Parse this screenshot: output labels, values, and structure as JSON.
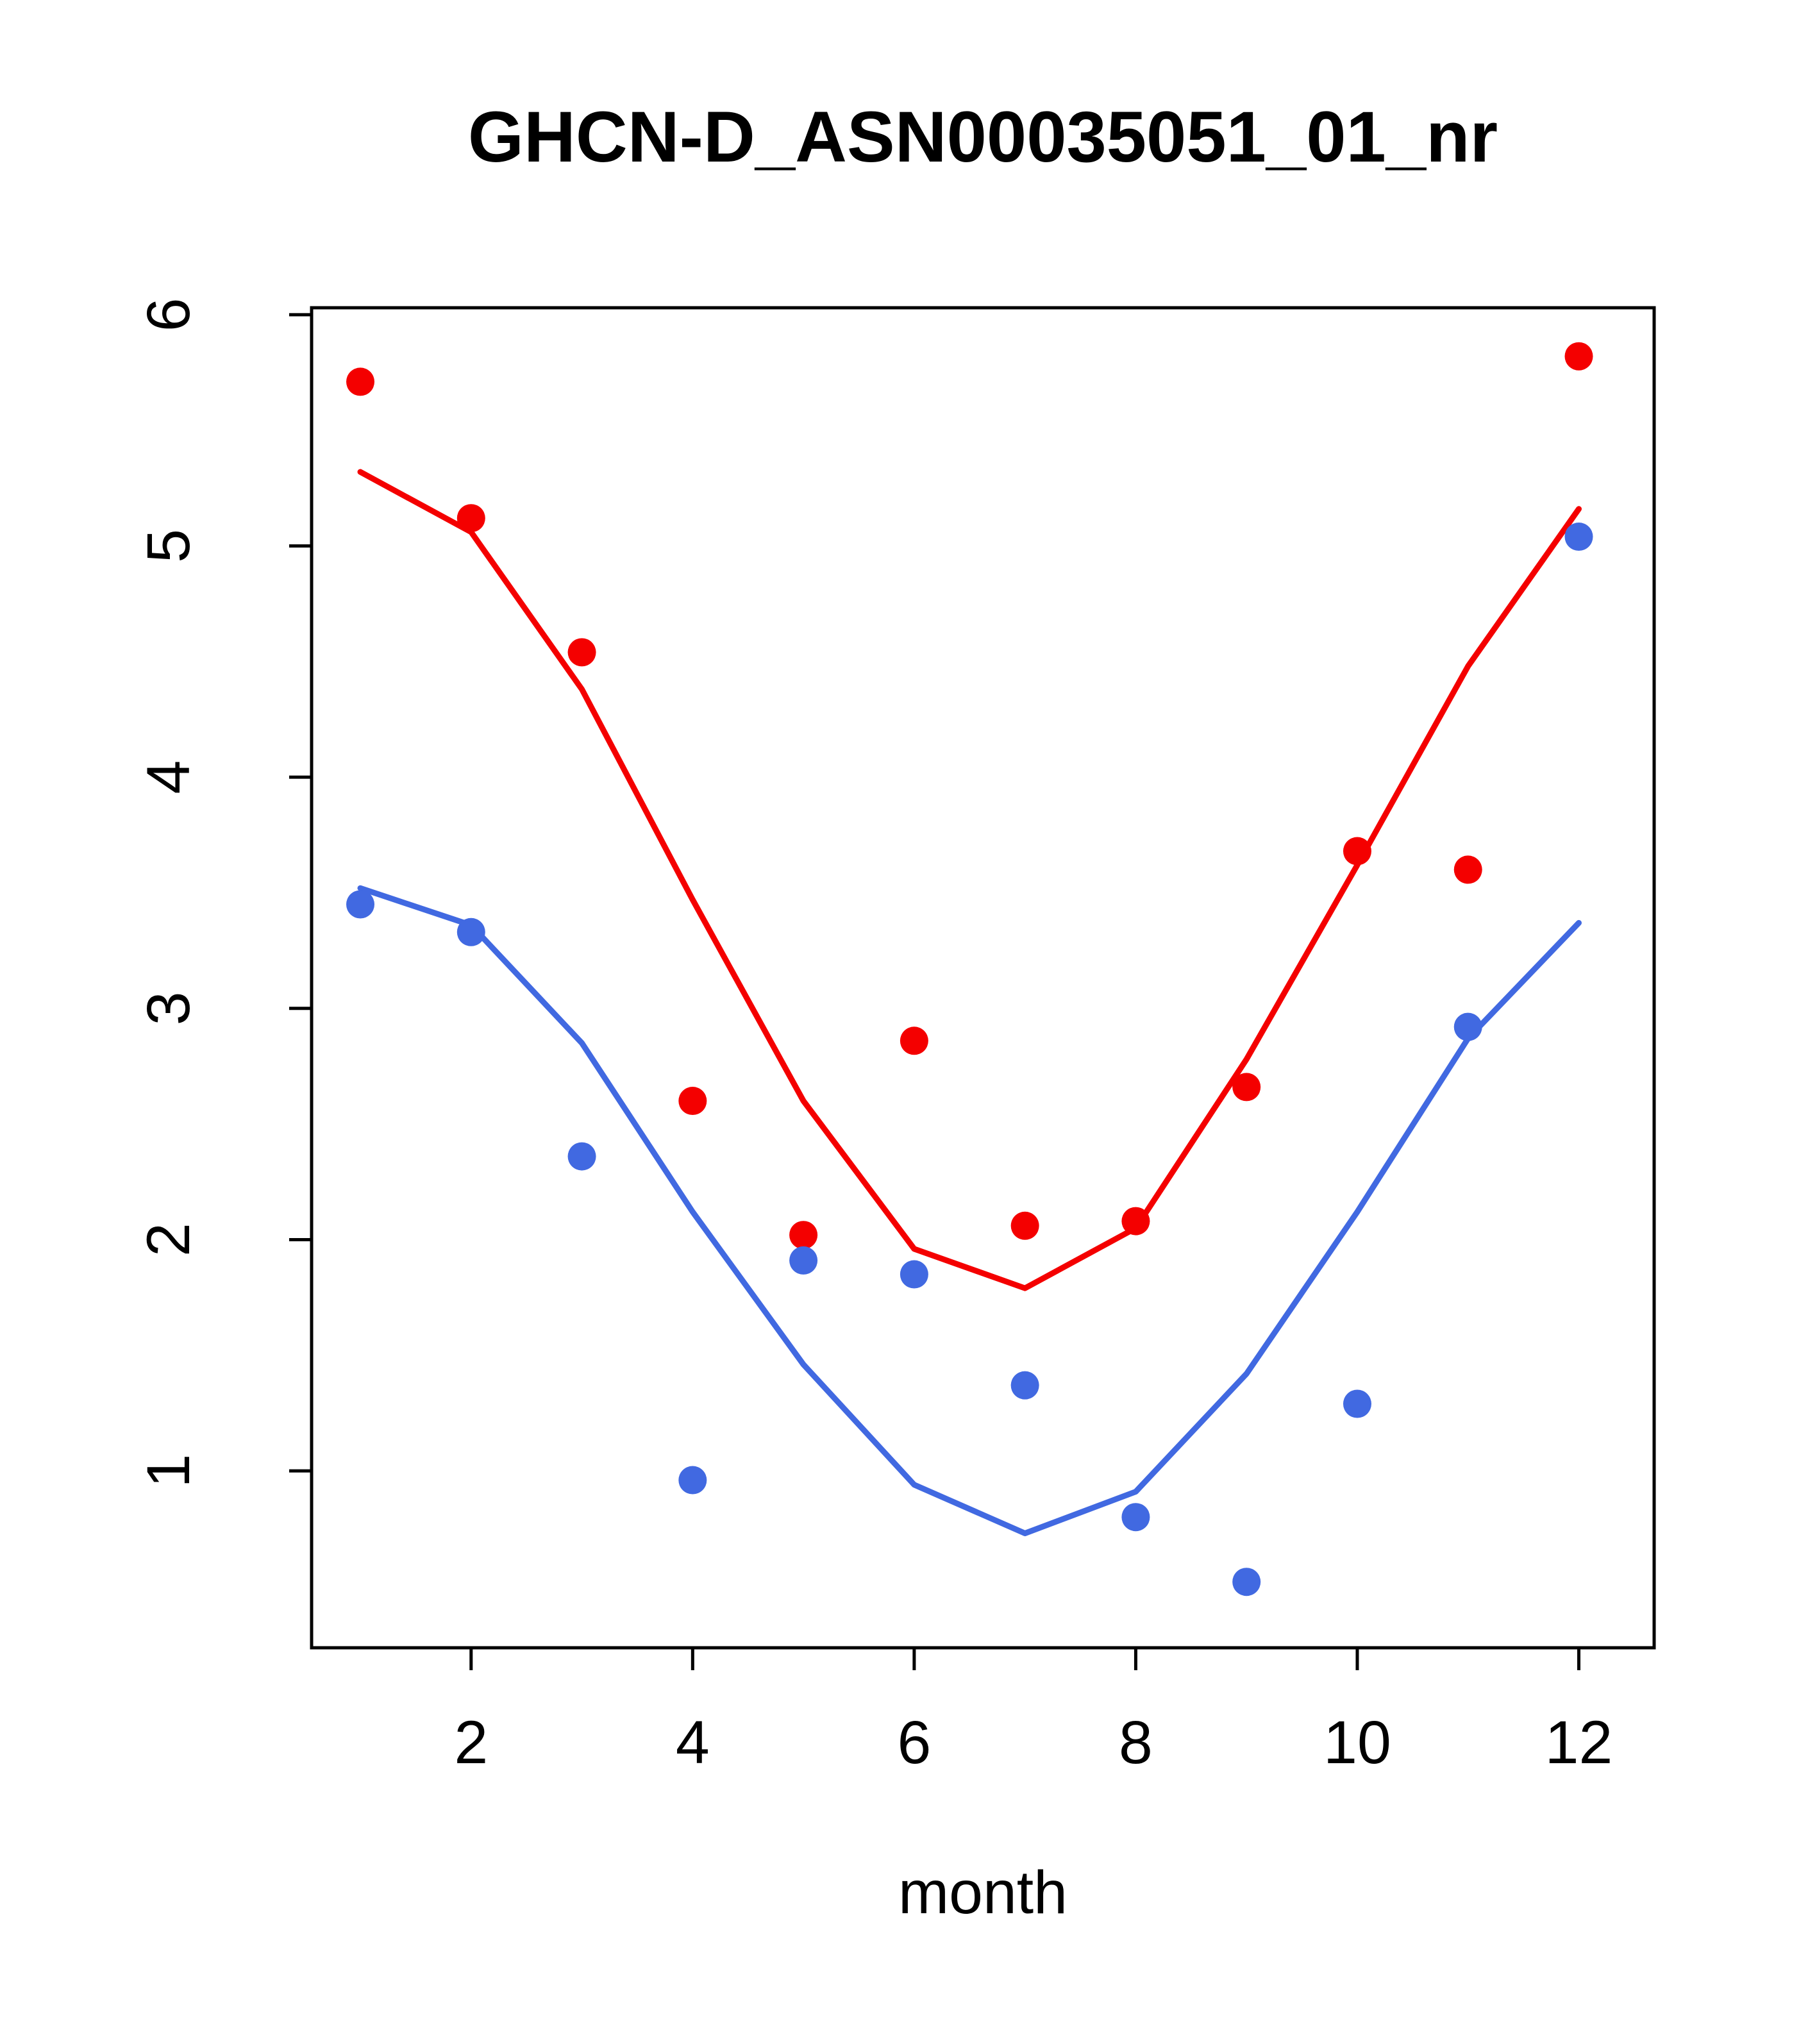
{
  "page": {
    "background": "#ffffff",
    "text_color": "#000000"
  },
  "chart_data": {
    "type": "scatter",
    "title": "GHCN-D_ASN00035051_01_nr",
    "xlabel": "month",
    "ylabel": "",
    "xlim": [
      0.56,
      12.68
    ],
    "ylim": [
      0.235,
      6.03
    ],
    "xticks": [
      2,
      4,
      6,
      8,
      10,
      12
    ],
    "yticks": [
      1,
      2,
      3,
      4,
      5,
      6
    ],
    "grid": false,
    "legend_position": "none",
    "x": [
      1,
      2,
      3,
      4,
      5,
      6,
      7,
      8,
      9,
      10,
      11,
      12
    ],
    "series": [
      {
        "name": "red-line-smooth",
        "kind": "line",
        "color": "#f40000",
        "values": [
          5.32,
          5.06,
          4.38,
          3.47,
          2.6,
          1.96,
          1.79,
          2.05,
          2.78,
          3.62,
          4.48,
          5.16
        ]
      },
      {
        "name": "blue-line-smooth",
        "kind": "line",
        "color": "#4169e1",
        "values": [
          3.52,
          3.36,
          2.85,
          2.12,
          1.46,
          0.94,
          0.73,
          0.91,
          1.42,
          2.12,
          2.87,
          3.37
        ]
      },
      {
        "name": "red-points",
        "kind": "points",
        "color": "#f40000",
        "values": [
          5.71,
          5.12,
          4.54,
          2.6,
          2.02,
          2.86,
          2.06,
          2.08,
          2.66,
          3.68,
          3.6,
          5.82
        ]
      },
      {
        "name": "blue-points",
        "kind": "points",
        "color": "#4169e1",
        "values": [
          3.45,
          3.33,
          2.36,
          0.96,
          1.91,
          1.85,
          1.37,
          0.8,
          0.52,
          1.29,
          2.92,
          5.04
        ]
      }
    ]
  }
}
